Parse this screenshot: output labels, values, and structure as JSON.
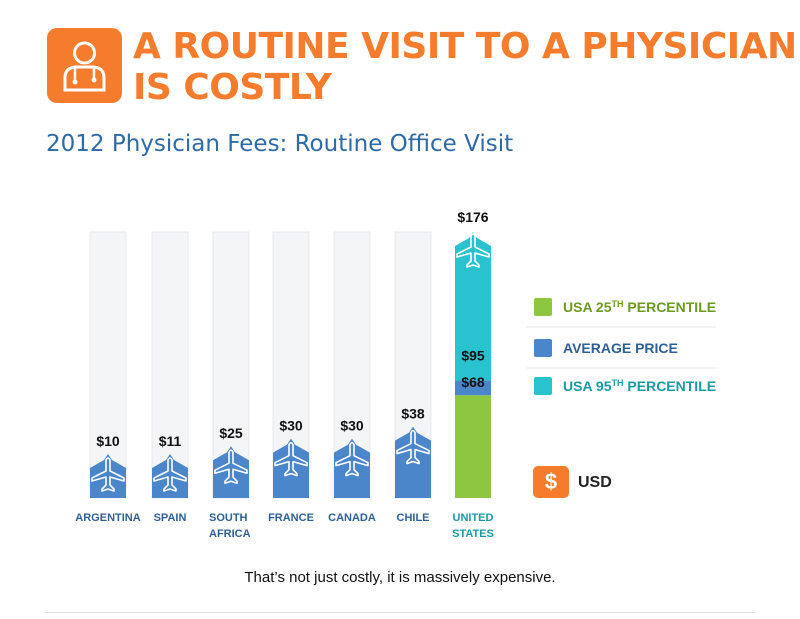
{
  "header": {
    "title_line1": "A ROUTINE VISIT TO A PHYSICIAN",
    "title_line2": "IS COSTLY",
    "icon": "doctor-icon"
  },
  "subtitle": "2012 Physician Fees: Routine Office Visit",
  "chart_data": {
    "type": "bar",
    "title": "2012 Physician Fees: Routine Office Visit",
    "unit": "USD",
    "ylim": [
      0,
      176
    ],
    "categories": [
      {
        "name": "ARGENTINA",
        "lines": [
          "ARGENTINA"
        ],
        "value": 10,
        "label": "$10"
      },
      {
        "name": "SPAIN",
        "lines": [
          "SPAIN"
        ],
        "value": 11,
        "label": "$11"
      },
      {
        "name": "SOUTH AFRICA",
        "lines": [
          "SOUTH",
          "AFRICA"
        ],
        "value": 25,
        "label": "$25"
      },
      {
        "name": "FRANCE",
        "lines": [
          "FRANCE"
        ],
        "value": 30,
        "label": "$30"
      },
      {
        "name": "CANADA",
        "lines": [
          "CANADA"
        ],
        "value": 30,
        "label": "$30"
      },
      {
        "name": "CHILE",
        "lines": [
          "CHILE"
        ],
        "value": 38,
        "label": "$38"
      }
    ],
    "usa": {
      "name": "UNITED STATES",
      "lines": [
        "UNITED",
        "STATES"
      ],
      "p25": 68,
      "p25_label": "$68",
      "average": 95,
      "average_label": "$95",
      "p95": 176,
      "p95_label": "$176"
    },
    "legend": [
      {
        "text": "USA 25",
        "sup": "TH",
        "after": " PERCENTILE",
        "color": "#8dc63f",
        "text_color": "#6b9b1e"
      },
      {
        "text": "AVERAGE PRICE",
        "sup": "",
        "after": "",
        "color": "#4a86c9",
        "text_color": "#2e5f95"
      },
      {
        "text": "USA 95",
        "sup": "TH",
        "after": " PERCENTILE",
        "color": "#29c3cf",
        "text_color": "#1a9aa5"
      }
    ],
    "legend_position": "right",
    "colors": {
      "bar": "#4a86c9",
      "usa_p25": "#8dc63f",
      "usa_avg": "#4a86c9",
      "usa_p95": "#29c3cf",
      "track": "#f4f5f7",
      "country_label": "#2e5f95",
      "usa_label": "#1a9aa5"
    }
  },
  "currency": {
    "symbol": "$",
    "label": "USD"
  },
  "caption": "That’s not just costly, it is massively expensive."
}
